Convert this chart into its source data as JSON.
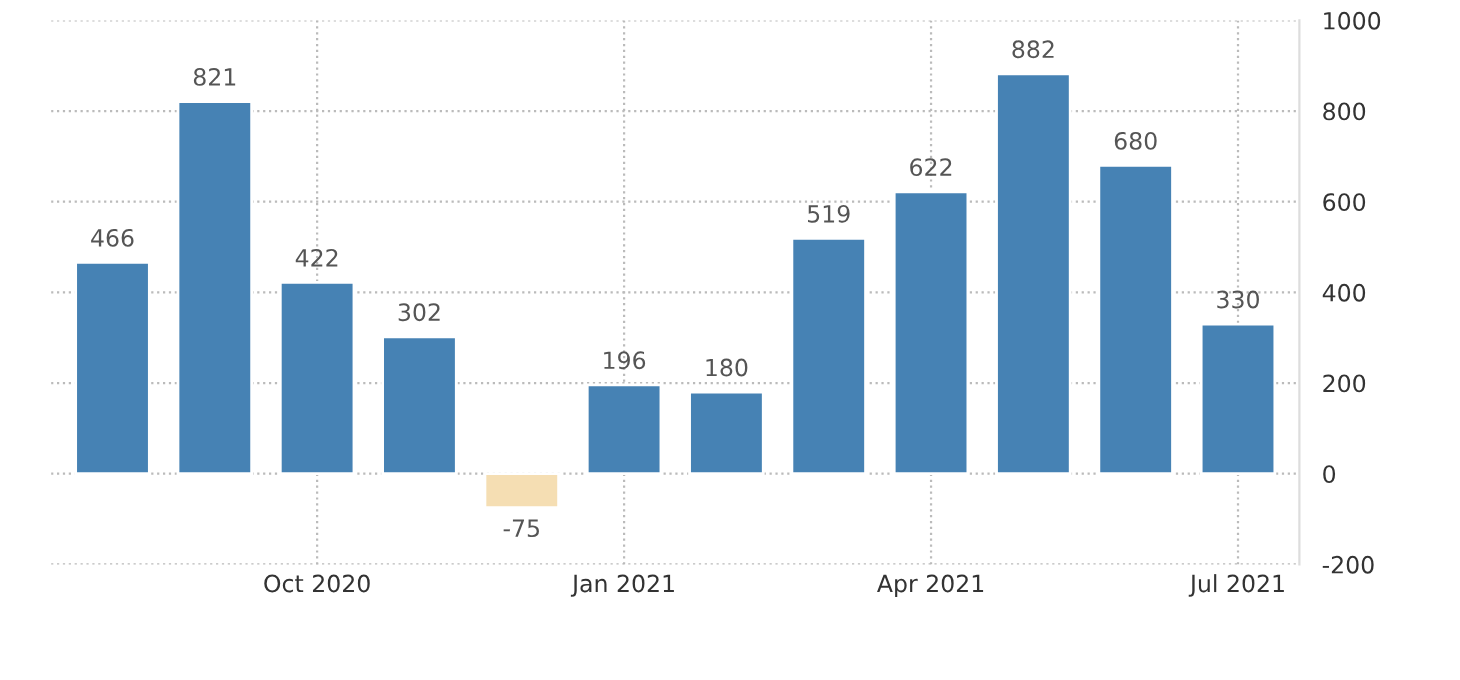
{
  "chart_data": {
    "type": "bar",
    "categories": [
      null,
      null,
      "Oct 2020",
      null,
      null,
      "Jan 2021",
      null,
      null,
      "Apr 2021",
      null,
      null,
      "Jul 2021"
    ],
    "values": [
      466,
      821,
      422,
      302,
      -75,
      196,
      180,
      519,
      622,
      882,
      680,
      330
    ],
    "colors": [
      "#4682b4",
      "#4682b4",
      "#4682b4",
      "#4682b4",
      "#f5deb3",
      "#4682b4",
      "#4682b4",
      "#4682b4",
      "#4682b4",
      "#4682b4",
      "#4682b4",
      "#4682b4"
    ],
    "ylim": [
      -200,
      1000
    ],
    "yticks": [
      -200,
      0,
      200,
      400,
      600,
      800,
      1000
    ],
    "grid": true,
    "data_labels": true
  }
}
